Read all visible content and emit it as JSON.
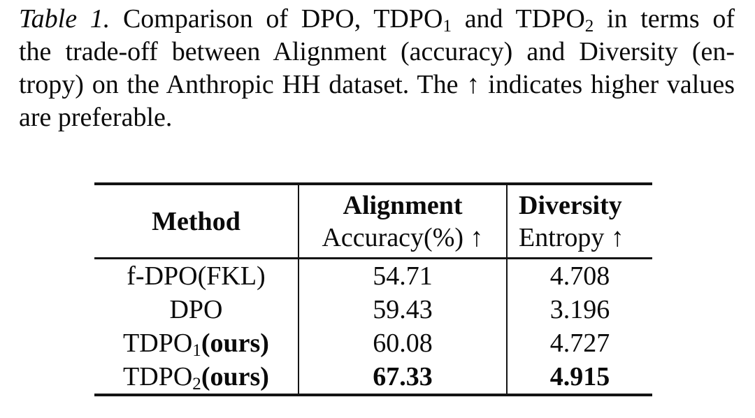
{
  "colors": {
    "background": "#ffffff",
    "text": "#0a0a0a",
    "rule": "#141414"
  },
  "caption": {
    "label": "Table 1.",
    "line1_pre": "Comparison of DPO, TDPO",
    "line1_sub1": "1",
    "line1_mid": " and TDPO",
    "line1_sub2": "2",
    "line1_post": " in terms of",
    "line2": "the trade-off between Alignment (accuracy) and Diversity (en-",
    "line3": "tropy) on the Anthropic HH dataset. The ↑ indicates higher values",
    "line4": "are preferable."
  },
  "table": {
    "header": {
      "method": "Method",
      "col2_line1": "Alignment",
      "col2_line2": "Accuracy(%) ↑",
      "col3_line1": "Diversity",
      "col3_line2": "Entropy ↑"
    },
    "rows": [
      {
        "method_pre": "f-DPO(FKL)",
        "method_sub": "",
        "method_suffix": "",
        "accuracy": "54.71",
        "entropy": "4.708"
      },
      {
        "method_pre": "DPO",
        "method_sub": "",
        "method_suffix": "",
        "accuracy": "59.43",
        "entropy": "3.196"
      },
      {
        "method_pre": "TDPO",
        "method_sub": "1",
        "method_suffix": "(ours)",
        "accuracy": "60.08",
        "entropy": "4.727"
      },
      {
        "method_pre": "TDPO",
        "method_sub": "2",
        "method_suffix": "(ours)",
        "accuracy": "67.33",
        "entropy": "4.915"
      }
    ]
  },
  "chart_data": {
    "type": "table",
    "title": "Table 1",
    "columns": [
      "Method",
      "Alignment Accuracy(%) ↑",
      "Diversity Entropy ↑"
    ],
    "rows": [
      [
        "f-DPO(FKL)",
        54.71,
        4.708
      ],
      [
        "DPO",
        59.43,
        3.196
      ],
      [
        "TDPO1(ours)",
        60.08,
        4.727
      ],
      [
        "TDPO2(ours)",
        67.33,
        4.915
      ]
    ],
    "bold_cells": [
      "TDPO2(ours) accuracy",
      "TDPO2(ours) entropy"
    ]
  }
}
